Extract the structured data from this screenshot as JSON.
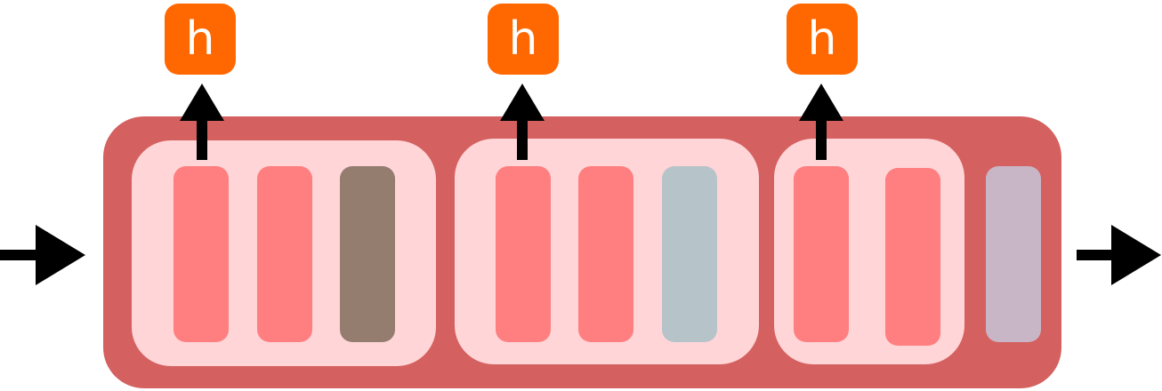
{
  "colors": {
    "outer_block": "#d46060",
    "group_background": "#ffd5d7",
    "bar_red": "#ff7e80",
    "bar_brown": "#947c6e",
    "bar_bluegray": "#b6c3c9",
    "bar_mauve": "#c8b6c6",
    "badge": "#ff6700",
    "arrow": "#000000"
  },
  "badges": [
    {
      "label": "h"
    },
    {
      "label": "h"
    },
    {
      "label": "h"
    }
  ]
}
